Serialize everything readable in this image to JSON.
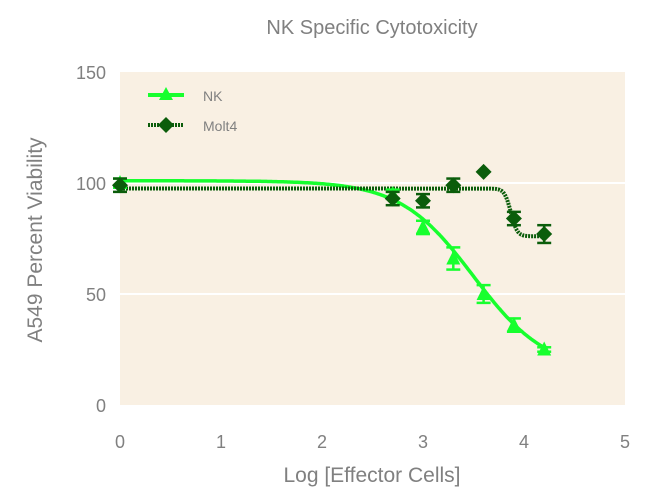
{
  "chart_data": {
    "type": "scatter",
    "title": "NK Specific Cytotoxicity",
    "xlabel": "Log [Effector Cells]",
    "ylabel": "A549 Percent Viability",
    "xlim": [
      0,
      5
    ],
    "ylim": [
      0,
      150
    ],
    "xticks": [
      "0",
      "1",
      "2",
      "3",
      "4",
      "5"
    ],
    "yticks": [
      "0",
      "50",
      "100",
      "150"
    ],
    "grid": true,
    "legend_position": "top-left",
    "colors": {
      "plot_bg": "#f9f0e3",
      "NK": "#17ff2e",
      "Molt4": "#0b5d0b"
    },
    "series": [
      {
        "name": "NK",
        "marker": "triangle",
        "x": [
          0,
          2.7,
          3.0,
          3.3,
          3.6,
          3.9,
          4.2
        ],
        "y": [
          100,
          95,
          80,
          66,
          50,
          36,
          25
        ],
        "err": [
          2,
          2,
          3,
          5,
          4,
          3,
          1
        ],
        "fit": {
          "top": 101,
          "bottom": 15,
          "logEC50": 3.5,
          "hill": 1.2
        }
      },
      {
        "name": "Molt4",
        "marker": "diamond",
        "x": [
          0,
          2.7,
          3.0,
          3.3,
          3.6,
          3.9,
          4.2
        ],
        "y": [
          99,
          93,
          92,
          99,
          105,
          84,
          77
        ],
        "err": [
          3,
          3,
          3,
          3,
          0,
          3,
          4
        ],
        "fit": {
          "top": 97.5,
          "bottom": 76,
          "logEC50": 3.87,
          "hill": 14
        }
      }
    ]
  }
}
